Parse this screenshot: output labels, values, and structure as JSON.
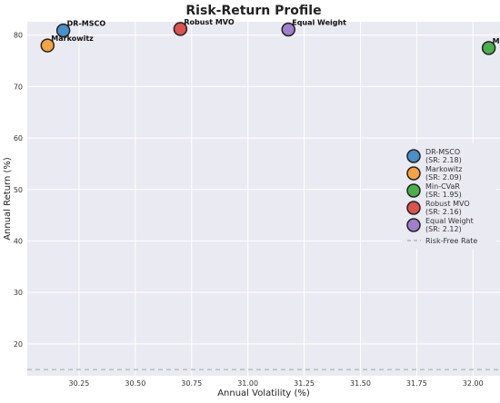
{
  "chart_data": {
    "type": "scatter",
    "title": "Risk-Return Profile",
    "xlabel": "Annual Volatility (%)",
    "ylabel": "Annual Return (%)",
    "xlim": [
      30.02,
      32.12
    ],
    "ylim": [
      13.8,
      82.6
    ],
    "x_ticks": [
      "30.25",
      "30.50",
      "30.75",
      "31.00",
      "31.25",
      "31.50",
      "31.75",
      "32.00"
    ],
    "x_tick_values": [
      30.25,
      30.5,
      30.75,
      31.0,
      31.25,
      31.5,
      31.75,
      32.0
    ],
    "y_ticks": [
      "20",
      "30",
      "40",
      "50",
      "60",
      "70",
      "80"
    ],
    "y_tick_values": [
      20,
      30,
      40,
      50,
      60,
      70,
      80
    ],
    "grid": true,
    "legend_position": "right",
    "risk_free_rate": 15.0,
    "risk_free_label": "Risk-Free Rate",
    "series": [
      {
        "name": "DR-MSCO",
        "sharpe_label": "(SR: 2.18)",
        "x": 30.18,
        "y": 80.9,
        "color": "#4a90c8",
        "point_label": "DR-MSCO"
      },
      {
        "name": "Markowitz",
        "sharpe_label": "(SR: 2.09)",
        "x": 30.11,
        "y": 78.0,
        "color": "#f5a345",
        "point_label": "Markowitz"
      },
      {
        "name": "Min-CVaR",
        "sharpe_label": "(SR: 1.95)",
        "x": 32.07,
        "y": 77.5,
        "color": "#4cae4c",
        "point_label": "Min-CVaR"
      },
      {
        "name": "Robust MVO",
        "sharpe_label": "(SR: 2.16)",
        "x": 30.7,
        "y": 81.2,
        "color": "#d9534f",
        "point_label": "Robust MVO"
      },
      {
        "name": "Equal Weight",
        "sharpe_label": "(SR: 2.12)",
        "x": 31.18,
        "y": 81.1,
        "color": "#a07fcc",
        "point_label": "Equal Weight"
      }
    ]
  }
}
